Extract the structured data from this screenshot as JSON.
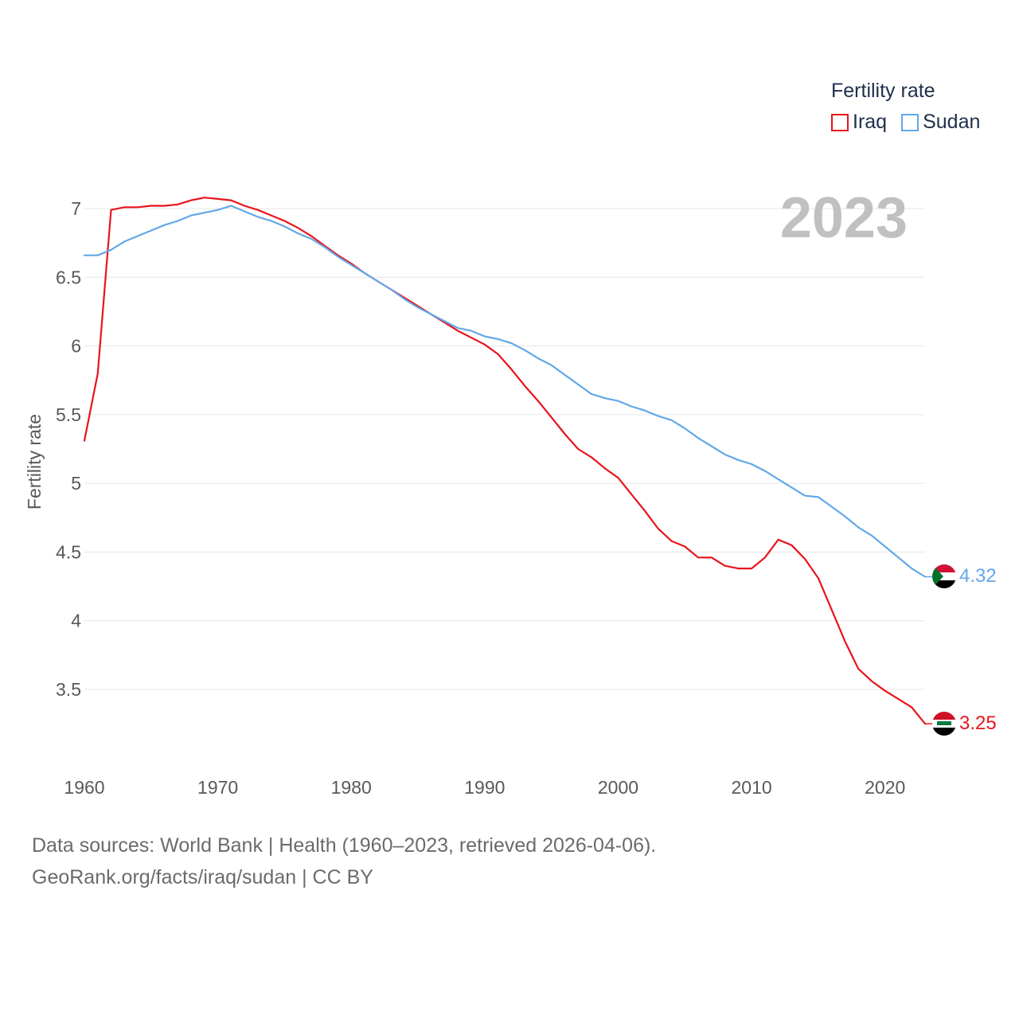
{
  "legend": {
    "title": "Fertility rate",
    "items": [
      {
        "label": "Iraq",
        "color": "#e8141c"
      },
      {
        "label": "Sudan",
        "color": "#62a8e8"
      }
    ]
  },
  "year_watermark": "2023",
  "source": {
    "line1": "Data sources: World Bank | Health (1960–2023, retrieved 2026-04-06).",
    "line2": "GeoRank.org/facts/iraq/sudan | CC BY"
  },
  "chart_data": {
    "type": "line",
    "title": "Fertility rate",
    "xlabel": "",
    "ylabel": "Fertility rate",
    "xlim": [
      1960,
      2023
    ],
    "ylim": [
      3.0,
      7.3
    ],
    "grid": true,
    "x_ticks": [
      1960,
      1970,
      1980,
      1990,
      2000,
      2010,
      2020
    ],
    "y_ticks": [
      3.5,
      4,
      4.5,
      5,
      5.5,
      6,
      6.5,
      7
    ],
    "x": [
      1960,
      1961,
      1962,
      1963,
      1964,
      1965,
      1966,
      1967,
      1968,
      1969,
      1970,
      1971,
      1972,
      1973,
      1974,
      1975,
      1976,
      1977,
      1978,
      1979,
      1980,
      1981,
      1982,
      1983,
      1984,
      1985,
      1986,
      1987,
      1988,
      1989,
      1990,
      1991,
      1992,
      1993,
      1994,
      1995,
      1996,
      1997,
      1998,
      1999,
      2000,
      2001,
      2002,
      2003,
      2004,
      2005,
      2006,
      2007,
      2008,
      2009,
      2010,
      2011,
      2012,
      2013,
      2014,
      2015,
      2016,
      2017,
      2018,
      2019,
      2020,
      2021,
      2022,
      2023
    ],
    "series": [
      {
        "name": "Iraq",
        "color": "#e8141c",
        "end_label": "3.25",
        "flag": "iraq-flag",
        "values": [
          5.31,
          5.8,
          6.99,
          7.01,
          7.01,
          7.02,
          7.02,
          7.03,
          7.06,
          7.08,
          7.07,
          7.06,
          7.02,
          6.99,
          6.95,
          6.91,
          6.86,
          6.8,
          6.73,
          6.66,
          6.6,
          6.53,
          6.47,
          6.41,
          6.35,
          6.29,
          6.23,
          6.17,
          6.11,
          6.06,
          6.01,
          5.94,
          5.83,
          5.71,
          5.6,
          5.48,
          5.36,
          5.25,
          5.19,
          5.11,
          5.04,
          4.92,
          4.8,
          4.67,
          4.58,
          4.54,
          4.46,
          4.46,
          4.4,
          4.38,
          4.38,
          4.46,
          4.59,
          4.55,
          4.45,
          4.31,
          4.08,
          3.85,
          3.65,
          3.56,
          3.49,
          3.43,
          3.37,
          3.25
        ]
      },
      {
        "name": "Sudan",
        "color": "#62a8e8",
        "end_label": "4.32",
        "flag": "sudan-flag",
        "values": [
          6.66,
          6.66,
          6.7,
          6.76,
          6.8,
          6.84,
          6.88,
          6.91,
          6.95,
          6.97,
          6.99,
          7.02,
          6.98,
          6.94,
          6.91,
          6.87,
          6.82,
          6.78,
          6.72,
          6.65,
          6.59,
          6.53,
          6.47,
          6.41,
          6.34,
          6.28,
          6.23,
          6.18,
          6.13,
          6.11,
          6.07,
          6.05,
          6.02,
          5.97,
          5.91,
          5.86,
          5.79,
          5.72,
          5.65,
          5.62,
          5.6,
          5.56,
          5.53,
          5.49,
          5.46,
          5.4,
          5.33,
          5.27,
          5.21,
          5.17,
          5.14,
          5.09,
          5.03,
          4.97,
          4.91,
          4.9,
          4.83,
          4.76,
          4.68,
          4.62,
          4.54,
          4.46,
          4.38,
          4.32
        ]
      }
    ]
  }
}
